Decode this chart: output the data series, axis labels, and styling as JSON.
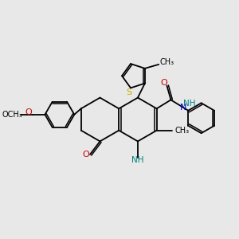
{
  "background_color": "#e8e8e8",
  "atom_colors": {
    "C": "#000000",
    "N": "#0000cc",
    "O": "#cc0000",
    "S": "#ccaa00",
    "H": "#008080"
  },
  "bond_color": "#000000",
  "bond_width": 1.3,
  "figsize": [
    3.0,
    3.0
  ],
  "dpi": 100,
  "xlim": [
    -2.8,
    3.0
  ],
  "ylim": [
    -2.5,
    2.5
  ]
}
